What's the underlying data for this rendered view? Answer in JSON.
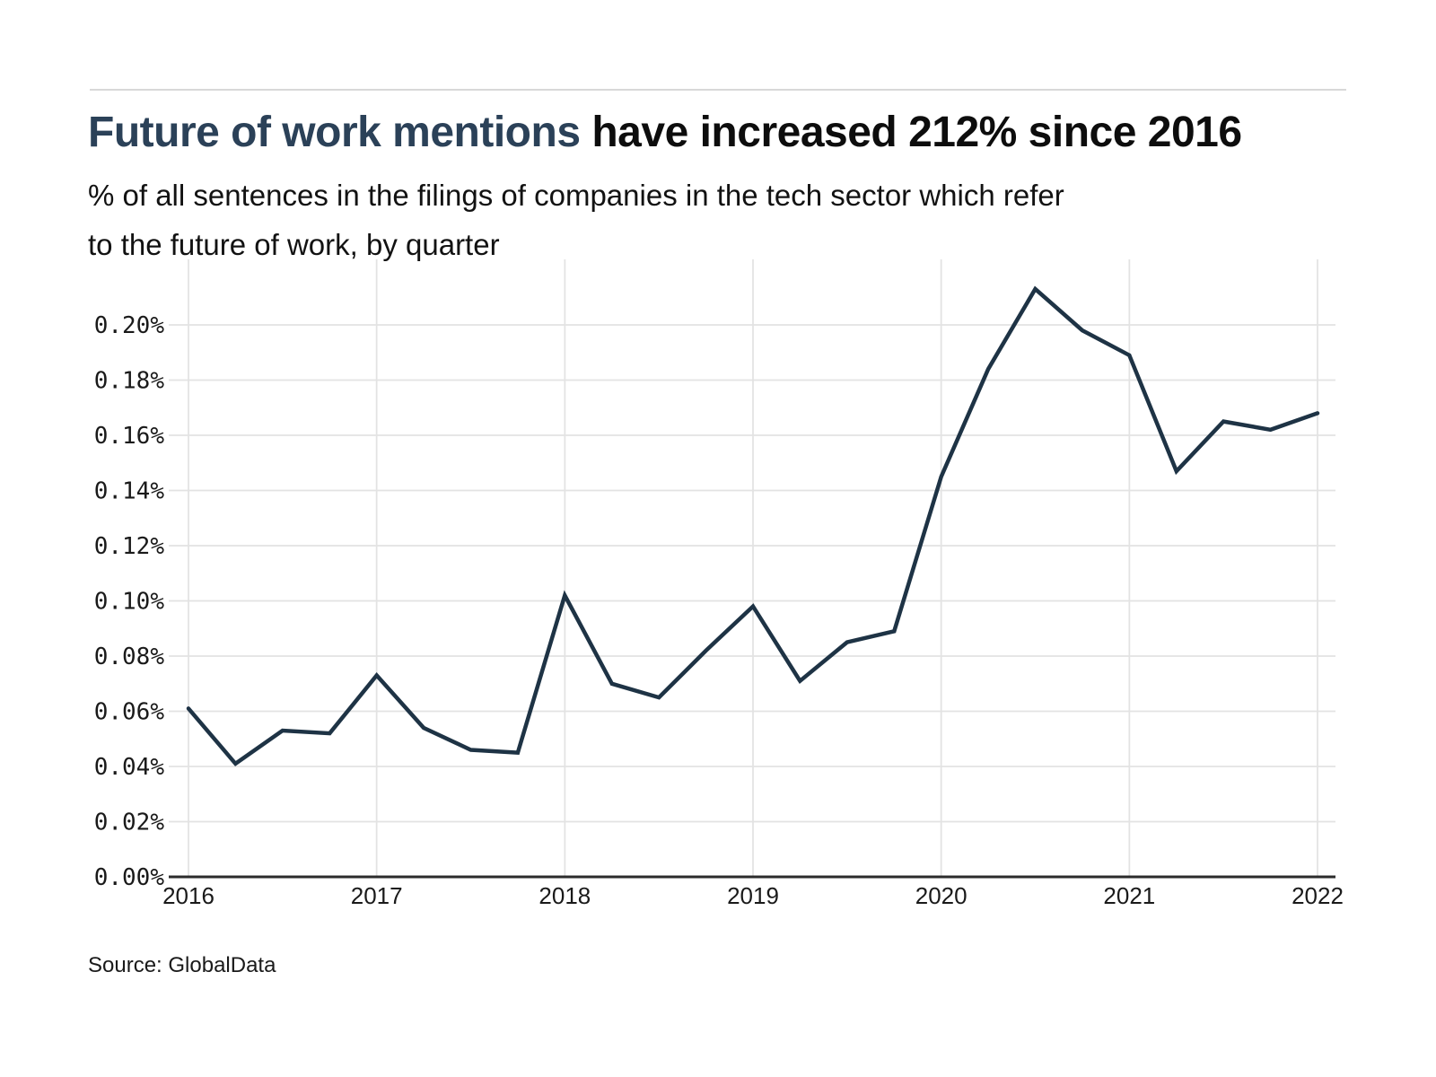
{
  "header": {
    "title_highlight": "Future of work mentions",
    "title_rest": " have increased 212% since 2016",
    "subtitle_line1": "% of all sentences in the filings of companies in the tech sector which refer",
    "subtitle_line2": "to the future of work, by quarter"
  },
  "source": {
    "label": "Source: GlobalData"
  },
  "colors": {
    "title_highlight": "#2b4158",
    "line": "#1e3345",
    "grid": "#e3e3e3",
    "axis": "#2b2b2b",
    "tick_text": "#1a1a1a",
    "rule": "#d8d8d8"
  },
  "chart_data": {
    "type": "line",
    "title": "Future of work mentions have increased 212% since 2016",
    "subtitle": "% of all sentences in the filings of companies in the tech sector which refer to the future of work, by quarter",
    "unit": "percent",
    "x": [
      "2016 Q1",
      "2016 Q2",
      "2016 Q3",
      "2016 Q4",
      "2017 Q1",
      "2017 Q2",
      "2017 Q3",
      "2017 Q4",
      "2018 Q1",
      "2018 Q2",
      "2018 Q3",
      "2018 Q4",
      "2019 Q1",
      "2019 Q2",
      "2019 Q3",
      "2019 Q4",
      "2020 Q1",
      "2020 Q2",
      "2020 Q3",
      "2020 Q4",
      "2021 Q1",
      "2021 Q2",
      "2021 Q3",
      "2021 Q4",
      "2022 Q1"
    ],
    "values": [
      0.061,
      0.041,
      0.053,
      0.052,
      0.073,
      0.054,
      0.046,
      0.045,
      0.102,
      0.07,
      0.065,
      0.082,
      0.098,
      0.071,
      0.085,
      0.089,
      0.145,
      0.184,
      0.213,
      0.198,
      0.189,
      0.147,
      0.165,
      0.162,
      0.168
    ],
    "x_tick_labels": [
      "2016",
      "2017",
      "2018",
      "2019",
      "2020",
      "2021",
      "2022"
    ],
    "y_tick_labels": [
      "0.00%",
      "0.02%",
      "0.04%",
      "0.06%",
      "0.08%",
      "0.10%",
      "0.12%",
      "0.14%",
      "0.16%",
      "0.18%",
      "0.20%"
    ],
    "y_tick_values": [
      0,
      0.02,
      0.04,
      0.06,
      0.08,
      0.1,
      0.12,
      0.14,
      0.16,
      0.18,
      0.2
    ],
    "ylim": [
      0,
      0.224
    ],
    "grid": true,
    "legend": "none",
    "line_color": "#1e3345"
  }
}
